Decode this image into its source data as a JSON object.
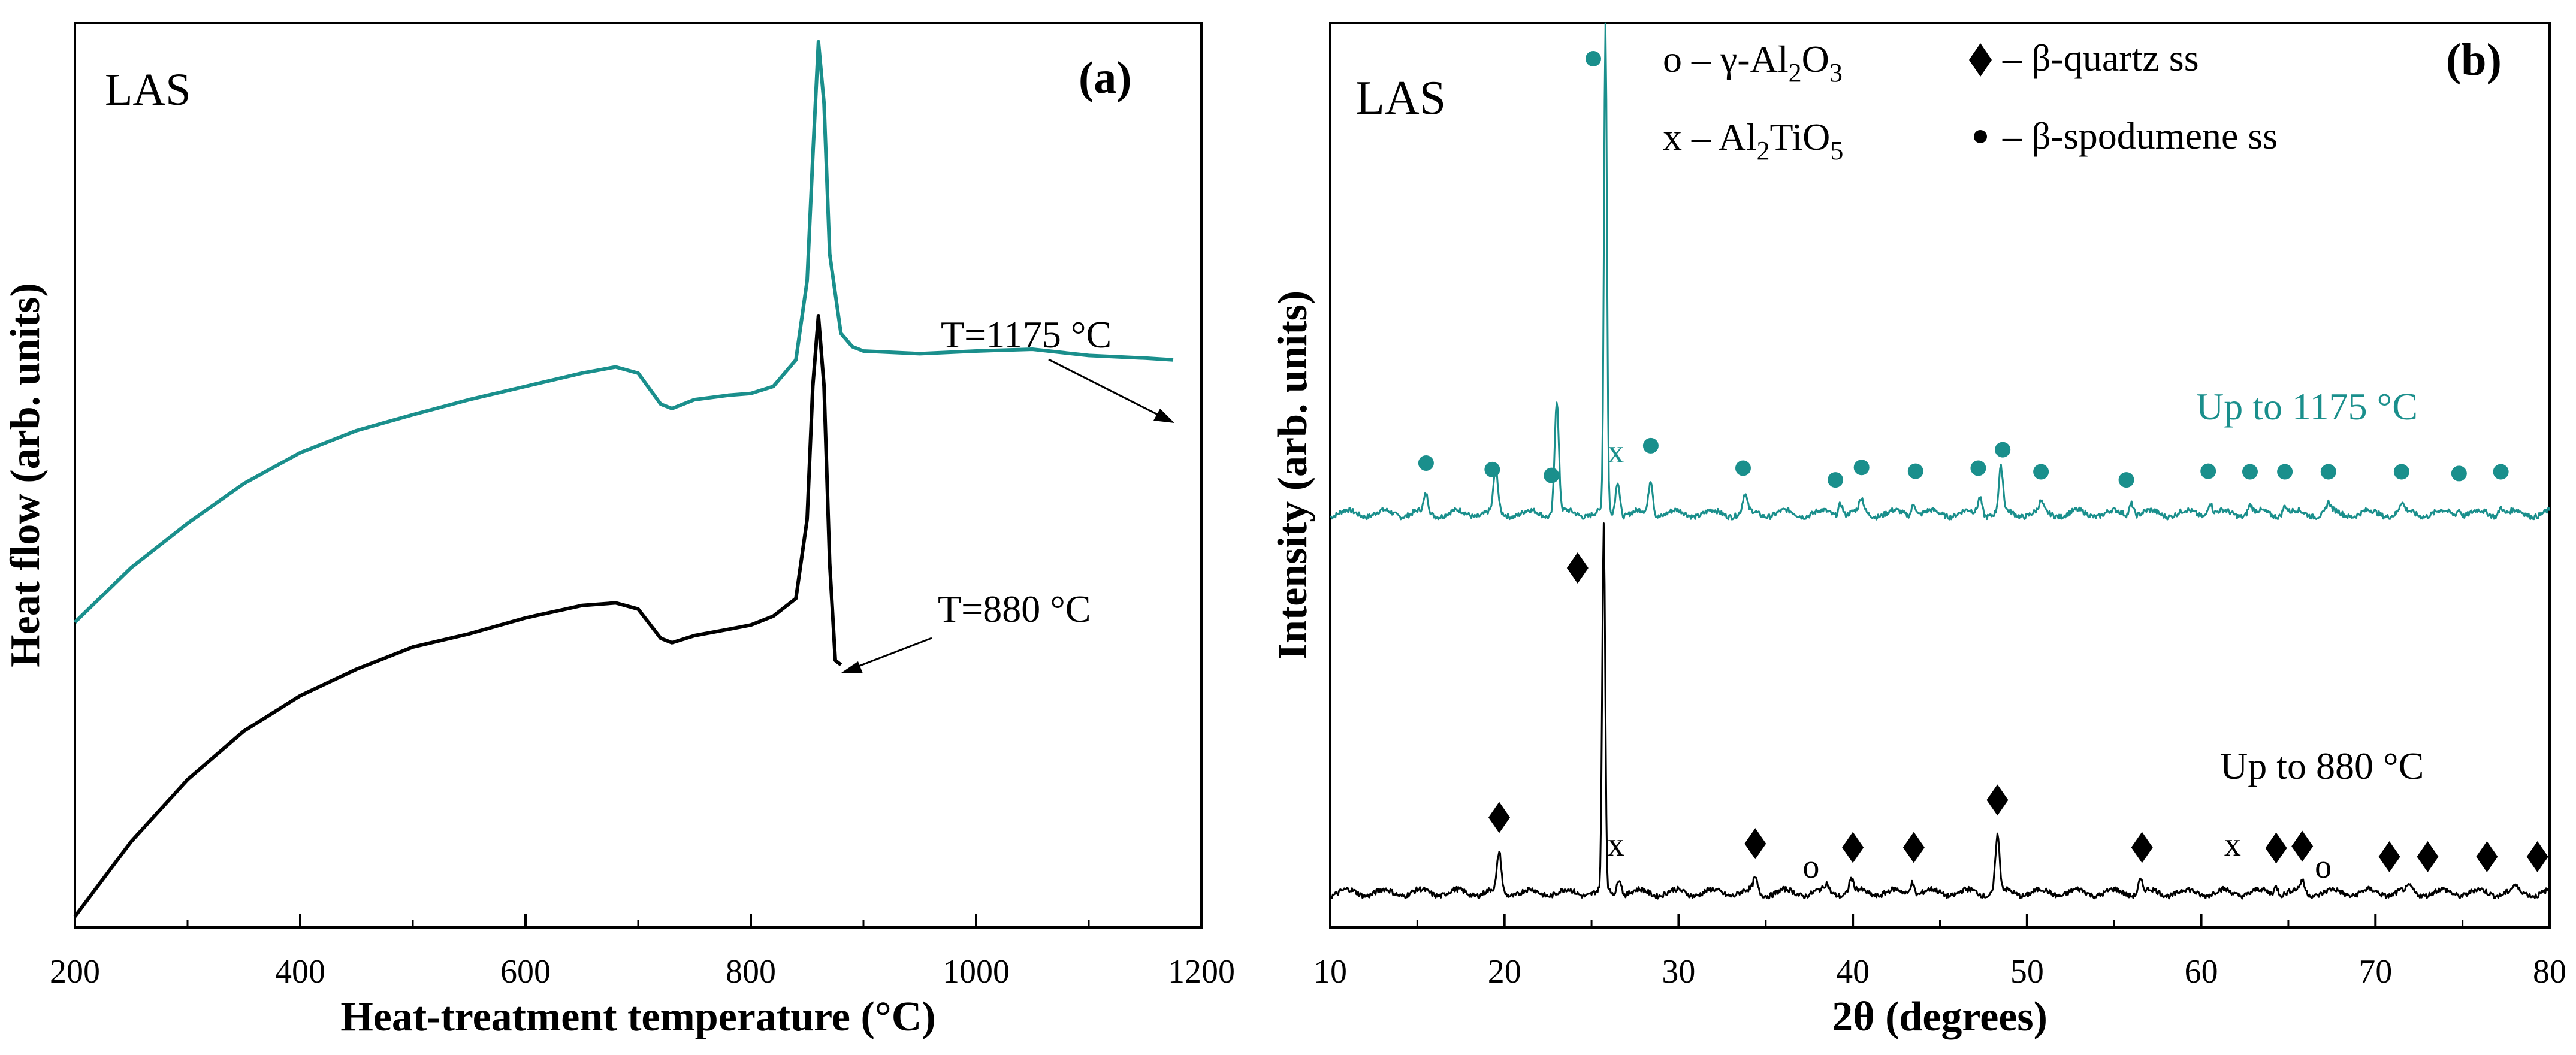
{
  "colors": {
    "teal": "#1a8f8c",
    "black": "#000000",
    "axis": "#000000"
  },
  "chart_data": [
    {
      "type": "line",
      "panel_label": "(a)",
      "sample_label": "LAS",
      "xlabel": "Heat-treatment temperature (°C)",
      "ylabel": "Heat flow (arb. units)",
      "xlim": [
        200,
        1200
      ],
      "ylim": [
        0,
        1
      ],
      "xticks": [
        200,
        400,
        600,
        800,
        1000,
        1200
      ],
      "series": [
        {
          "name": "T=1175 °C",
          "color": "#1a8f8c",
          "x": [
            200,
            250,
            300,
            350,
            400,
            450,
            500,
            550,
            600,
            650,
            680,
            700,
            720,
            730,
            750,
            780,
            800,
            820,
            840,
            850,
            855,
            860,
            865,
            870,
            880,
            890,
            900,
            950,
            1000,
            1050,
            1100,
            1150,
            1175
          ],
          "y": [
            0.333,
            0.395,
            0.445,
            0.49,
            0.525,
            0.55,
            0.568,
            0.585,
            0.6,
            0.615,
            0.622,
            0.615,
            0.58,
            0.575,
            0.585,
            0.59,
            0.592,
            0.6,
            0.63,
            0.72,
            0.86,
            0.99,
            0.92,
            0.75,
            0.66,
            0.645,
            0.64,
            0.637,
            0.64,
            0.642,
            0.635,
            0.632,
            0.63
          ]
        },
        {
          "name": "T=880 °C",
          "color": "#000000",
          "x": [
            200,
            250,
            300,
            350,
            400,
            450,
            500,
            550,
            600,
            650,
            680,
            700,
            720,
            730,
            750,
            780,
            800,
            820,
            840,
            850,
            855,
            860,
            865,
            870,
            875,
            880
          ],
          "y": [
            0.0,
            0.085,
            0.155,
            0.21,
            0.25,
            0.28,
            0.305,
            0.32,
            0.338,
            0.352,
            0.355,
            0.348,
            0.315,
            0.31,
            0.318,
            0.325,
            0.33,
            0.34,
            0.36,
            0.45,
            0.6,
            0.68,
            0.6,
            0.4,
            0.29,
            0.285
          ]
        }
      ],
      "annotations": [
        {
          "text": "T=1175 °C",
          "points_to": [
            1175,
            0.63
          ]
        },
        {
          "text": "T=880 °C",
          "points_to": [
            880,
            0.285
          ]
        }
      ]
    },
    {
      "type": "line",
      "panel_label": "(b)",
      "sample_label": "LAS",
      "xlabel": "2θ (degrees)",
      "ylabel": "Intensity (arb. units)",
      "xlim": [
        10,
        80
      ],
      "ylim": [
        0,
        1
      ],
      "xticks": [
        10,
        20,
        30,
        40,
        50,
        60,
        70,
        80
      ],
      "series": [
        {
          "name": "Up to 1175 °C",
          "color": "#1a8f8c",
          "baseline": 0.435,
          "peaks": [
            [
              15.5,
              0.02
            ],
            [
              19.5,
              0.05
            ],
            [
              23.0,
              0.13
            ],
            [
              25.8,
              0.56
            ],
            [
              26.5,
              0.04
            ],
            [
              28.4,
              0.04
            ],
            [
              33.8,
              0.02
            ],
            [
              39.3,
              0.015
            ],
            [
              40.5,
              0.015
            ],
            [
              43.5,
              0.015
            ],
            [
              47.3,
              0.02
            ],
            [
              48.5,
              0.05
            ],
            [
              50.8,
              0.01
            ],
            [
              56.0,
              0.015
            ],
            [
              60.5,
              0.015
            ],
            [
              62.8,
              0.01
            ],
            [
              64.8,
              0.01
            ],
            [
              67.3,
              0.01
            ],
            [
              71.5,
              0.01
            ],
            [
              74.8,
              0.008
            ],
            [
              77.2,
              0.01
            ]
          ]
        },
        {
          "name": "Up to 880 °C",
          "color": "#000000",
          "baseline": 0.0,
          "peaks": [
            [
              19.7,
              0.045
            ],
            [
              25.7,
              0.42
            ],
            [
              26.6,
              0.02
            ],
            [
              34.4,
              0.015
            ],
            [
              38.5,
              0.008
            ],
            [
              39.9,
              0.015
            ],
            [
              43.4,
              0.015
            ],
            [
              48.3,
              0.065
            ],
            [
              56.5,
              0.015
            ],
            [
              64.3,
              0.01
            ],
            [
              65.8,
              0.012
            ],
            [
              72.0,
              0.005
            ],
            [
              78.0,
              0.005
            ]
          ]
        }
      ],
      "markers_1175": {
        "symbol": "β-spodumene ss",
        "x": [
          15.5,
          19.3,
          22.7,
          25.1,
          28.4,
          33.7,
          39.0,
          40.5,
          43.6,
          47.2,
          48.6,
          50.8,
          55.7,
          60.4,
          62.8,
          64.8,
          67.3,
          71.5,
          74.8,
          77.2
        ]
      },
      "markers_880": {
        "diamond": [
          19.7,
          24.2,
          34.4,
          40.0,
          43.5,
          48.3,
          56.6,
          64.3,
          65.8,
          70.8,
          73.0,
          76.4,
          79.3
        ],
        "x_mark": [
          26.4,
          61.8
        ],
        "o_mark": [
          37.6,
          67.0
        ]
      },
      "legend": [
        {
          "symbol": "o",
          "text_pre": "o – γ-Al",
          "sub1": "2",
          "text_mid": "O",
          "sub2": "3"
        },
        {
          "symbol": "x",
          "text_pre": "x – Al",
          "sub1": "2",
          "text_mid": "TiO",
          "sub2": "5"
        },
        {
          "symbol": "diamond",
          "text": "– β-quartz ss"
        },
        {
          "symbol": "dot",
          "text": "– β-spodumene ss"
        }
      ]
    }
  ]
}
